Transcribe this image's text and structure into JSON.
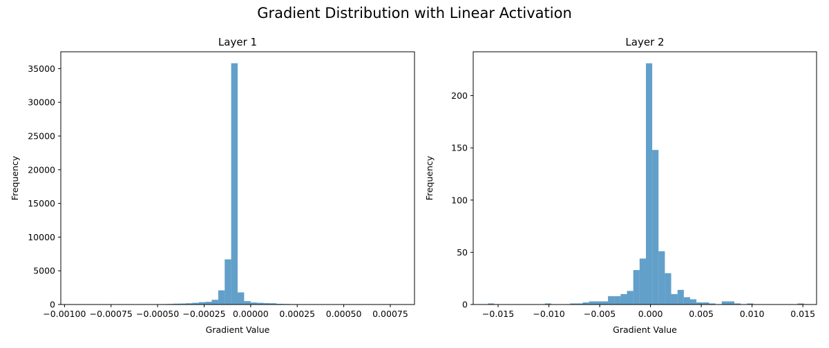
{
  "figure": {
    "suptitle": "Gradient Distribution with Linear Activation"
  },
  "colors": {
    "bar": "#1f77b4",
    "bar_opacity": 0.7,
    "axes": "#000000"
  },
  "chart_data": [
    {
      "type": "bar",
      "title": "Layer 1",
      "xlabel": "Gradient Value",
      "ylabel": "Frequency",
      "xlim": [
        -0.00102,
        0.00088
      ],
      "ylim": [
        0,
        37500
      ],
      "xticks": [
        {
          "value": -0.001,
          "label": "−0.00100"
        },
        {
          "value": -0.00075,
          "label": "−0.00075"
        },
        {
          "value": -0.0005,
          "label": "−0.00050"
        },
        {
          "value": -0.00025,
          "label": "−0.00025"
        },
        {
          "value": 0.0,
          "label": "0.00000"
        },
        {
          "value": 0.00025,
          "label": "0.00025"
        },
        {
          "value": 0.0005,
          "label": "0.00050"
        },
        {
          "value": 0.00075,
          "label": "0.00075"
        }
      ],
      "yticks": [
        {
          "value": 0,
          "label": "0"
        },
        {
          "value": 5000,
          "label": "5000"
        },
        {
          "value": 10000,
          "label": "10000"
        },
        {
          "value": 15000,
          "label": "15000"
        },
        {
          "value": 20000,
          "label": "20000"
        },
        {
          "value": 25000,
          "label": "25000"
        },
        {
          "value": 30000,
          "label": "30000"
        },
        {
          "value": 35000,
          "label": "35000"
        }
      ],
      "bins": {
        "start": -0.00094,
        "width": 3.48e-05,
        "counts": [
          10,
          5,
          5,
          5,
          10,
          10,
          10,
          10,
          10,
          15,
          15,
          20,
          30,
          60,
          80,
          120,
          140,
          180,
          250,
          350,
          400,
          700,
          2100,
          6700,
          35800,
          1800,
          500,
          300,
          250,
          200,
          180,
          100,
          80,
          60,
          50,
          40,
          30,
          20,
          15,
          10,
          10,
          10,
          5,
          5,
          5,
          5,
          5,
          5,
          5,
          5
        ]
      }
    },
    {
      "type": "bar",
      "title": "Layer 2",
      "xlabel": "Gradient Value",
      "ylabel": "Frequency",
      "xlim": [
        -0.01745,
        0.01635
      ],
      "ylim": [
        0,
        242
      ],
      "xticks": [
        {
          "value": -0.015,
          "label": "−0.015"
        },
        {
          "value": -0.01,
          "label": "−0.010"
        },
        {
          "value": -0.005,
          "label": "−0.005"
        },
        {
          "value": 0.0,
          "label": "0.000"
        },
        {
          "value": 0.005,
          "label": "0.005"
        },
        {
          "value": 0.01,
          "label": "0.010"
        },
        {
          "value": 0.015,
          "label": "0.015"
        }
      ],
      "yticks": [
        {
          "value": 0,
          "label": "0"
        },
        {
          "value": 50,
          "label": "50"
        },
        {
          "value": 100,
          "label": "100"
        },
        {
          "value": 150,
          "label": "150"
        },
        {
          "value": 200,
          "label": "200"
        }
      ],
      "bins": {
        "start": -0.016,
        "width": 0.000622,
        "counts": [
          1,
          0,
          0,
          0,
          0,
          0,
          0,
          0,
          0,
          1,
          0,
          0,
          0,
          1,
          1,
          2,
          3,
          3,
          3,
          8,
          8,
          10,
          13,
          33,
          44,
          231,
          148,
          51,
          30,
          10,
          14,
          7,
          5,
          2,
          2,
          1,
          0,
          3,
          3,
          1,
          0,
          1,
          0,
          0,
          0,
          0,
          0,
          0,
          0,
          1
        ]
      }
    }
  ]
}
